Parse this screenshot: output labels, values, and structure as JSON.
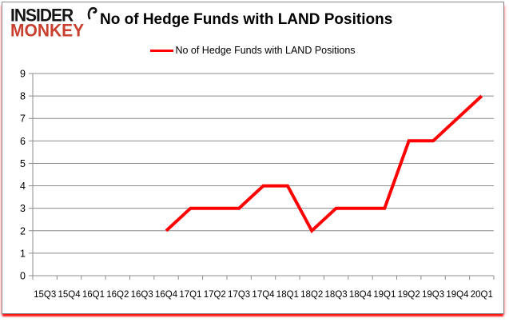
{
  "logo": {
    "line1": "INSIDER",
    "line2": "MONKEY"
  },
  "header": {
    "title": "No of Hedge Funds with LAND Positions"
  },
  "legend": {
    "label": "No of Hedge Funds with LAND Positions"
  },
  "colors": {
    "line": "#ff0000",
    "monkey_red": "#c8402f",
    "grid": "#8c8c8c",
    "text": "#000000"
  },
  "chart_data": {
    "type": "line",
    "title": "No of Hedge Funds with LAND Positions",
    "categories": [
      "15Q3",
      "15Q4",
      "16Q1",
      "16Q2",
      "16Q3",
      "16Q4",
      "17Q1",
      "17Q2",
      "17Q3",
      "17Q4",
      "18Q1",
      "18Q2",
      "18Q3",
      "18Q4",
      "19Q1",
      "19Q2",
      "19Q3",
      "19Q4",
      "20Q1"
    ],
    "series": [
      {
        "name": "No of Hedge Funds with LAND Positions",
        "values": [
          null,
          null,
          null,
          null,
          null,
          2,
          3,
          3,
          3,
          4,
          4,
          2,
          3,
          3,
          3,
          6,
          6,
          7,
          8
        ]
      }
    ],
    "xlabel": "",
    "ylabel": "",
    "ylim": [
      0,
      9
    ],
    "yticks": [
      0,
      1,
      2,
      3,
      4,
      5,
      6,
      7,
      8,
      9
    ],
    "grid": true,
    "legend_position": "top-center",
    "line_color": "#ff0000",
    "grid_color": "#8c8c8c",
    "line_width": 4
  }
}
